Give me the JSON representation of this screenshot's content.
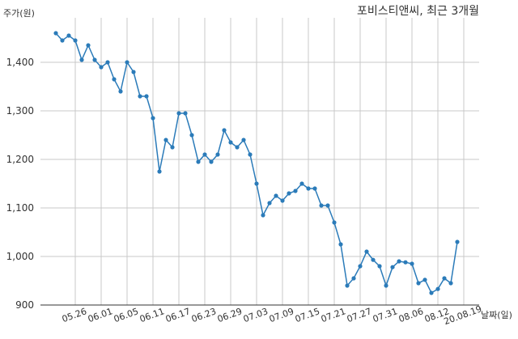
{
  "chart_data": {
    "type": "line",
    "title": "포비스티앤씨, 최근 3개월",
    "ylabel": "주가(원)",
    "xlabel": "날짜(일)",
    "ylim": [
      900,
      1480
    ],
    "yticks": [
      900,
      1000,
      1100,
      1200,
      1300,
      1400
    ],
    "ytick_labels": [
      "900",
      "1,000",
      "1,100",
      "1,200",
      "1,300",
      "1,400"
    ],
    "xticks": [
      "05.26",
      "06.01",
      "06.05",
      "06.11",
      "06.17",
      "06.23",
      "06.29",
      "07.03",
      "07.09",
      "07.15",
      "07.21",
      "07.27",
      "07.31",
      "08.06",
      "08.12",
      "20.08.19"
    ],
    "xtick_index": [
      3,
      7,
      11,
      15,
      19,
      23,
      27,
      31,
      35,
      39,
      43,
      47,
      51,
      55,
      59,
      63
    ],
    "grid": true,
    "color": "#2b7bb9",
    "values": [
      1460,
      1445,
      1455,
      1445,
      1405,
      1435,
      1405,
      1390,
      1400,
      1365,
      1340,
      1400,
      1380,
      1330,
      1330,
      1285,
      1175,
      1240,
      1225,
      1295,
      1295,
      1250,
      1195,
      1210,
      1195,
      1210,
      1260,
      1235,
      1225,
      1240,
      1210,
      1150,
      1085,
      1110,
      1125,
      1115,
      1130,
      1135,
      1150,
      1140,
      1140,
      1105,
      1105,
      1070,
      1025,
      940,
      955,
      980,
      1010,
      993,
      980,
      940,
      978,
      990,
      988,
      985,
      945,
      952,
      925,
      933,
      955,
      945,
      1030
    ]
  }
}
